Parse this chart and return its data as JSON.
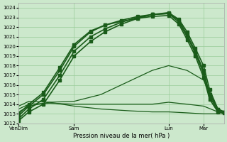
{
  "bg_color": "#cce8cc",
  "grid_color": "#99cc99",
  "line_color": "#1a5c1a",
  "xlabel": "Pression niveau de la mer( hPa )",
  "ylim": [
    1012,
    1024.5
  ],
  "yticks": [
    1012,
    1013,
    1014,
    1015,
    1016,
    1017,
    1018,
    1019,
    1020,
    1021,
    1022,
    1023,
    1024
  ],
  "xtick_labels": [
    "VenDim",
    "Sam",
    "Lun",
    "Mar"
  ],
  "xtick_positions": [
    0.0,
    0.27,
    0.73,
    0.9
  ],
  "xlim": [
    0.0,
    1.0
  ],
  "series": [
    {
      "x": [
        0.0,
        0.05,
        0.12,
        0.2,
        0.27,
        0.35,
        0.42,
        0.5,
        0.58,
        0.65,
        0.73,
        0.78,
        0.82,
        0.86,
        0.9,
        0.93,
        0.97,
        1.0
      ],
      "y": [
        1012.3,
        1013.2,
        1014.0,
        1016.5,
        1019.0,
        1020.5,
        1021.5,
        1022.3,
        1022.9,
        1023.3,
        1023.5,
        1022.8,
        1021.5,
        1019.8,
        1018.0,
        1015.5,
        1013.5,
        1013.2
      ],
      "marker": "s",
      "lw": 1.2,
      "ms": 2.5
    },
    {
      "x": [
        0.0,
        0.05,
        0.12,
        0.2,
        0.27,
        0.35,
        0.42,
        0.5,
        0.58,
        0.65,
        0.73,
        0.78,
        0.82,
        0.86,
        0.9,
        0.93,
        0.97,
        1.0
      ],
      "y": [
        1012.5,
        1013.5,
        1014.5,
        1017.0,
        1019.5,
        1021.0,
        1021.8,
        1022.5,
        1023.0,
        1023.3,
        1023.4,
        1022.7,
        1021.2,
        1019.5,
        1017.5,
        1015.0,
        1013.5,
        1013.2
      ],
      "marker": "s",
      "lw": 1.2,
      "ms": 2.5
    },
    {
      "x": [
        0.0,
        0.05,
        0.12,
        0.2,
        0.27,
        0.35,
        0.42,
        0.5,
        0.58,
        0.65,
        0.73,
        0.78,
        0.82,
        0.86,
        0.9,
        0.93,
        0.97,
        1.0
      ],
      "y": [
        1012.8,
        1013.8,
        1015.0,
        1017.5,
        1020.0,
        1021.5,
        1022.2,
        1022.7,
        1023.1,
        1023.3,
        1023.4,
        1022.5,
        1021.0,
        1019.3,
        1017.2,
        1014.8,
        1013.3,
        1013.2
      ],
      "marker": "s",
      "lw": 1.2,
      "ms": 2.5
    },
    {
      "x": [
        0.0,
        0.05,
        0.12,
        0.2,
        0.27,
        0.35,
        0.42,
        0.5,
        0.58,
        0.65,
        0.73,
        0.78,
        0.82,
        0.86,
        0.9,
        0.93,
        0.97,
        1.0
      ],
      "y": [
        1013.0,
        1014.0,
        1015.2,
        1017.8,
        1020.2,
        1021.6,
        1022.2,
        1022.6,
        1022.9,
        1023.1,
        1023.2,
        1022.3,
        1020.7,
        1019.0,
        1016.8,
        1014.5,
        1013.2,
        1013.1
      ],
      "marker": "s",
      "lw": 1.2,
      "ms": 2.5
    },
    {
      "x": [
        0.0,
        0.05,
        0.15,
        0.27,
        0.4,
        0.55,
        0.65,
        0.73,
        0.82,
        0.9,
        0.97,
        1.0
      ],
      "y": [
        1013.2,
        1013.8,
        1014.2,
        1014.3,
        1015.0,
        1016.5,
        1017.5,
        1018.0,
        1017.5,
        1016.5,
        1013.5,
        1013.2
      ],
      "marker": null,
      "lw": 0.9,
      "ms": 0
    },
    {
      "x": [
        0.0,
        0.05,
        0.15,
        0.27,
        0.4,
        0.55,
        0.65,
        0.73,
        0.82,
        0.9,
        0.97,
        1.0
      ],
      "y": [
        1013.5,
        1014.0,
        1014.1,
        1014.0,
        1014.0,
        1014.0,
        1014.0,
        1014.2,
        1014.0,
        1013.8,
        1013.2,
        1013.1
      ],
      "marker": null,
      "lw": 0.9,
      "ms": 0
    },
    {
      "x": [
        0.0,
        0.05,
        0.15,
        0.27,
        0.4,
        0.55,
        0.65,
        0.73,
        0.82,
        0.9,
        0.97,
        1.0
      ],
      "y": [
        1013.8,
        1014.3,
        1014.2,
        1013.8,
        1013.5,
        1013.3,
        1013.2,
        1013.2,
        1013.1,
        1013.0,
        1013.0,
        1013.0
      ],
      "marker": null,
      "lw": 0.9,
      "ms": 0
    }
  ]
}
